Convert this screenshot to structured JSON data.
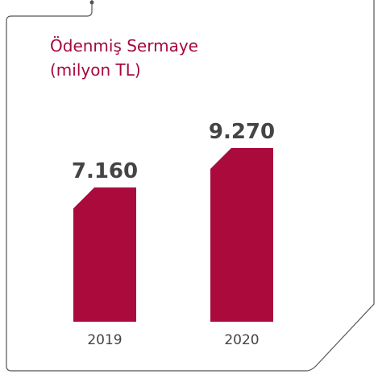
{
  "chart_data": {
    "type": "bar",
    "title": "Ödenmiş Sermaye",
    "subtitle": "(milyon TL)",
    "categories": [
      "2019",
      "2020"
    ],
    "values": [
      7160,
      9270
    ],
    "value_labels": [
      "7.160",
      "9.270"
    ],
    "xlabel": "",
    "ylabel": "",
    "ylim": [
      0,
      10300
    ],
    "grid": false,
    "legend": "none",
    "bar_color": "#ab0a3d",
    "text_color": "#444444",
    "title_color": "#a5093b",
    "frame_color": "#555555"
  }
}
